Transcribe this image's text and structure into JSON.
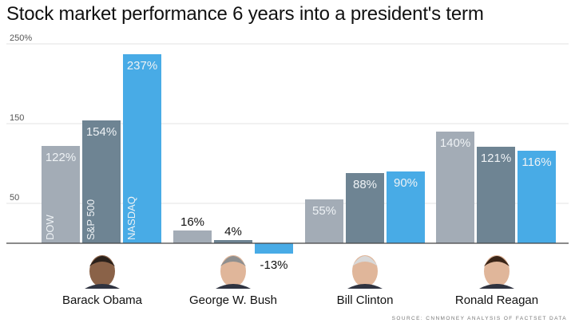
{
  "chart_data": {
    "type": "bar",
    "title": "Stock market performance 6 years into a president's term",
    "categories": [
      "Barack Obama",
      "George W. Bush",
      "Bill Clinton",
      "Ronald Reagan"
    ],
    "series": [
      {
        "name": "DOW",
        "values": [
          122,
          16,
          55,
          140
        ],
        "labels": [
          "122%",
          "16%",
          "55%",
          "140%"
        ],
        "color": "#a3acb6"
      },
      {
        "name": "S&P 500",
        "values": [
          154,
          4,
          88,
          121
        ],
        "labels": [
          "154%",
          "4%",
          "88%",
          "121%"
        ],
        "color": "#6e8493"
      },
      {
        "name": "NASDAQ",
        "values": [
          237,
          -13,
          90,
          116
        ],
        "labels": [
          "237%",
          "-13%",
          "90%",
          "116%"
        ],
        "color": "#48abe6"
      }
    ],
    "y_ticks": [
      {
        "value": 250,
        "label": "250%"
      },
      {
        "value": 150,
        "label": "150"
      },
      {
        "value": 50,
        "label": "50"
      }
    ],
    "ylim": [
      -15,
      250
    ],
    "grid": true,
    "legend": "series names written vertically inside the first group's bars",
    "label_color_inside": "#eef2f5",
    "label_color_outside": "#111111",
    "grid_color": "#e3e3e3",
    "zero_line_color": "#444444",
    "icons": [
      "obama-portrait-icon",
      "bush-portrait-icon",
      "clinton-portrait-icon",
      "reagan-portrait-icon"
    ]
  },
  "source": "SOURCE: CNNMONEY ANALYSIS OF FACTSET DATA"
}
